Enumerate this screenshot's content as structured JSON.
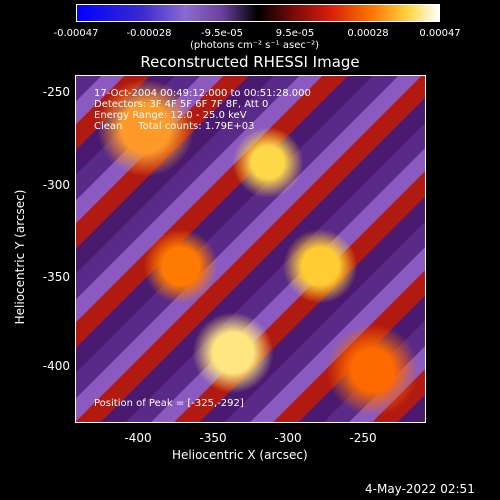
{
  "colorbar": {
    "ticks": [
      "-0.00047",
      "-0.00028",
      "-9.5e-05",
      "9.5e-05",
      "0.00028",
      "0.00047"
    ],
    "unit": "(photons cm⁻² s⁻¹ asec⁻²)"
  },
  "title": "Reconstructed RHESSI Image",
  "info": {
    "time": "17-Oct-2004 00:49:12.000 to 00:51:28.000",
    "detectors": "Detectors: 3F 4F 5F 6F 7F 8F, Att 0",
    "energy": "Energy Range: 12.0 - 25.0 keV",
    "method": "Clean     Total counts: 1.79E+03"
  },
  "peak": "Position of Peak = [-325,-292]",
  "x_axis": {
    "label": "Heliocentric X (arcsec)",
    "ticks": [
      "-400",
      "-350",
      "-300",
      "-250"
    ]
  },
  "y_axis": {
    "label": "Heliocentric Y (arcsec)",
    "ticks": [
      "-250",
      "-300",
      "-350",
      "-400"
    ]
  },
  "footer_date": "4-May-2022 02:51"
}
